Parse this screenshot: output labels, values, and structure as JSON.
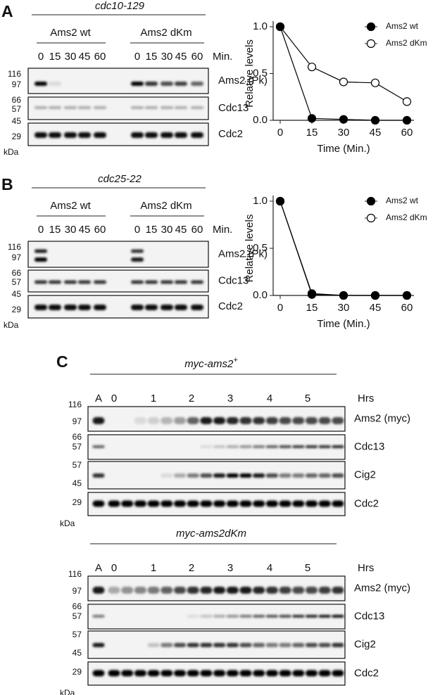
{
  "panels": [
    {
      "letter": "A",
      "strain": "cdc10-129",
      "groups": [
        "Ams2 wt",
        "Ams2 dKm"
      ],
      "times": [
        "0",
        "15",
        "30",
        "45",
        "60"
      ],
      "time_unit": "Min.",
      "markers": [
        "116",
        "97",
        "66",
        "57",
        "45",
        "29"
      ],
      "marker_unit": "kDa",
      "rows": [
        "Ams2 (Pk)",
        "Cdc13",
        "Cdc2"
      ]
    },
    {
      "letter": "B",
      "strain": "cdc25-22",
      "groups": [
        "Ams2 wt",
        "Ams2 dKm"
      ],
      "times": [
        "0",
        "15",
        "30",
        "45",
        "60"
      ],
      "time_unit": "Min.",
      "markers": [
        "116",
        "97",
        "66",
        "57",
        "45",
        "29"
      ],
      "marker_unit": "kDa",
      "rows": [
        "Ams2 (Pk)",
        "Cdc13",
        "Cdc2"
      ]
    },
    {
      "letter": "C",
      "blots": [
        {
          "strain": "myc-ams2",
          "strain_sup": "+",
          "lanes": [
            "A",
            "0",
            "1",
            "2",
            "3",
            "4",
            "5"
          ],
          "lane_unit": "Hrs",
          "markers": [
            "116",
            "97",
            "66",
            "57",
            "57",
            "45",
            "29"
          ],
          "marker_unit": "kDa",
          "rows": [
            "Ams2 (myc)",
            "Cdc13",
            "Cig2",
            "Cdc2"
          ]
        },
        {
          "strain": "myc-ams2dKm",
          "lanes": [
            "A",
            "0",
            "1",
            "2",
            "3",
            "4",
            "5"
          ],
          "lane_unit": "Hrs",
          "markers": [
            "116",
            "97",
            "66",
            "57",
            "57",
            "45",
            "29"
          ],
          "marker_unit": "kDa",
          "rows": [
            "Ams2 (myc)",
            "Cdc13",
            "Cig2",
            "Cdc2"
          ]
        }
      ]
    }
  ],
  "chart_data": [
    {
      "type": "line",
      "x_label": "Time (Min.)",
      "y_label": "Relative levels",
      "x": [
        0,
        15,
        30,
        45,
        60
      ],
      "xlim": [
        0,
        60
      ],
      "xticks": [
        0,
        15,
        30,
        45,
        60
      ],
      "ylim": [
        0,
        1
      ],
      "yticks": [
        {
          "value": 0,
          "label": "0.0"
        },
        {
          "value": 0.5,
          "label": "0.5"
        },
        {
          "value": 1,
          "label": "1.0"
        }
      ],
      "legend": "upper right",
      "series": [
        {
          "name": "Ams2 wt",
          "color": "#000000",
          "marker": "filled",
          "values": [
            1.0,
            0.02,
            0.01,
            0.0,
            0.0
          ]
        },
        {
          "name": "Ams2 dKm",
          "color": "#000000",
          "marker": "open",
          "values": [
            1.0,
            0.57,
            0.41,
            0.4,
            0.2
          ]
        }
      ]
    },
    {
      "type": "line",
      "x_label": "Time (Min.)",
      "y_label": "Relative levels",
      "x": [
        0,
        15,
        30,
        45,
        60
      ],
      "xlim": [
        0,
        60
      ],
      "xticks": [
        0,
        15,
        30,
        45,
        60
      ],
      "ylim": [
        0,
        1
      ],
      "yticks": [
        {
          "value": 0,
          "label": "0.0"
        },
        {
          "value": 0.5,
          "label": "0.5"
        },
        {
          "value": 1,
          "label": "1.0"
        }
      ],
      "legend": "upper right",
      "series": [
        {
          "name": "Ams2 wt",
          "color": "#000000",
          "marker": "filled",
          "values": [
            1.0,
            0.01,
            0.0,
            0.0,
            0.0
          ]
        },
        {
          "name": "Ams2 dKm",
          "color": "#000000",
          "marker": "open",
          "values": [
            1.0,
            0.02,
            0.0,
            0.0,
            0.0
          ]
        }
      ]
    }
  ]
}
